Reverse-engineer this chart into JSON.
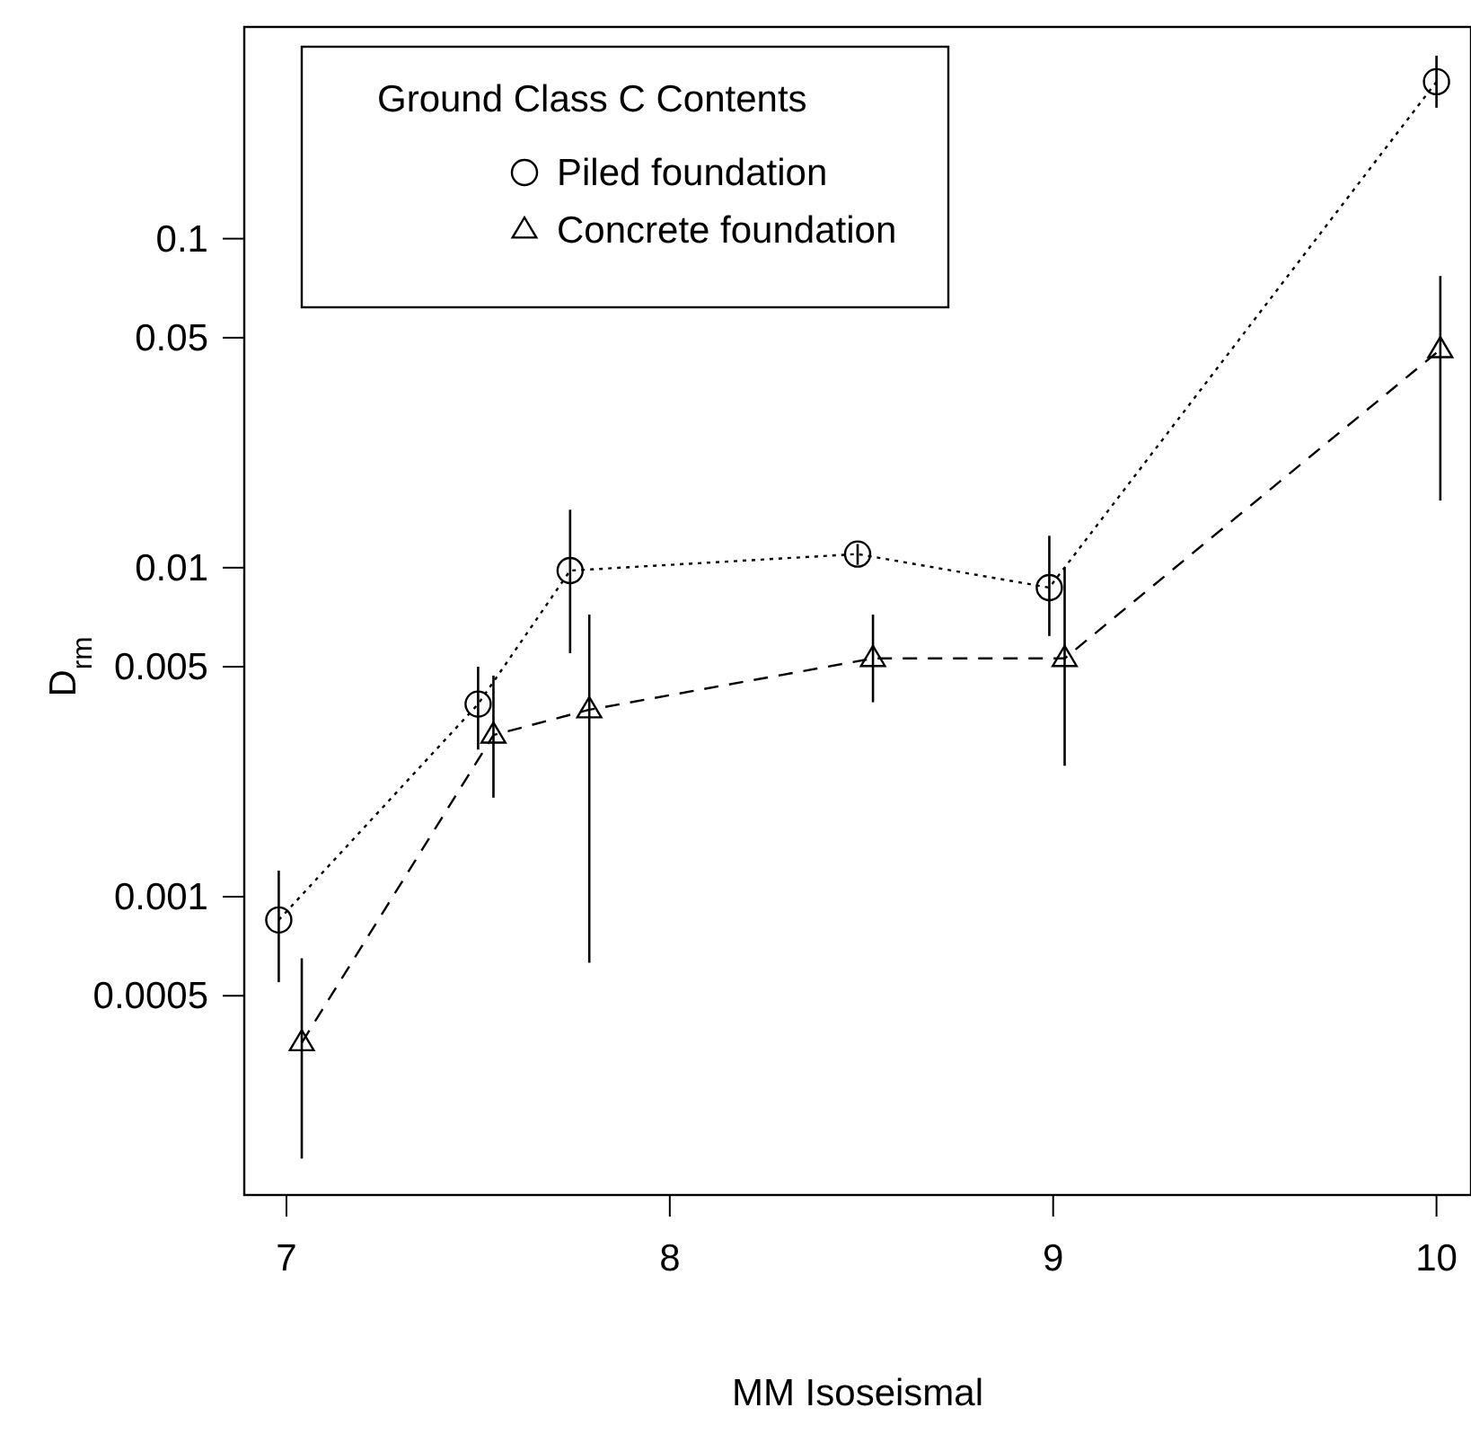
{
  "chart_data": {
    "type": "line",
    "xlabel": "MM Isoseismal",
    "ylabel": "D$_{rm}$",
    "legend_title": "Ground Class C  Contents",
    "legend": "top left",
    "log": "y",
    "xlim": [
      6.89,
      10.09
    ],
    "xticks": [
      7,
      8,
      9,
      10
    ],
    "ylim": [
      0.000124,
      0.44
    ],
    "yticks": [
      0.0005,
      0.001,
      0.005,
      0.01,
      0.05,
      0.1
    ],
    "grid": false,
    "series": [
      {
        "name": "Piled foundation",
        "color": "#000000",
        "marker": "circle",
        "line_style": "dotted",
        "x": [
          6.98,
          7.5,
          7.74,
          8.49,
          8.99,
          10.0
        ],
        "values": [
          0.00085,
          0.00385,
          0.0098,
          0.011,
          0.0087,
          0.3
        ],
        "errors": [
          [
            0.00055,
            0.0012
          ],
          [
            0.0028,
            0.005
          ],
          [
            0.0055,
            0.015
          ],
          [
            0.0102,
            0.0118
          ],
          [
            0.0062,
            0.0125
          ],
          [
            0.25,
            0.36
          ]
        ]
      },
      {
        "name": "Concrete foundation",
        "color": "#000000",
        "marker": "triangle",
        "line_style": "dashed",
        "x": [
          7.04,
          7.54,
          7.79,
          8.53,
          9.03,
          10.01
        ],
        "values": [
          0.00036,
          0.0031,
          0.0037,
          0.0053,
          0.0053,
          0.046
        ],
        "errors": [
          [
            0.00016,
            0.00065
          ],
          [
            0.002,
            0.0047
          ],
          [
            0.00063,
            0.0072
          ],
          [
            0.0039,
            0.0072
          ],
          [
            0.0025,
            0.01
          ],
          [
            0.016,
            0.077
          ]
        ]
      }
    ]
  }
}
